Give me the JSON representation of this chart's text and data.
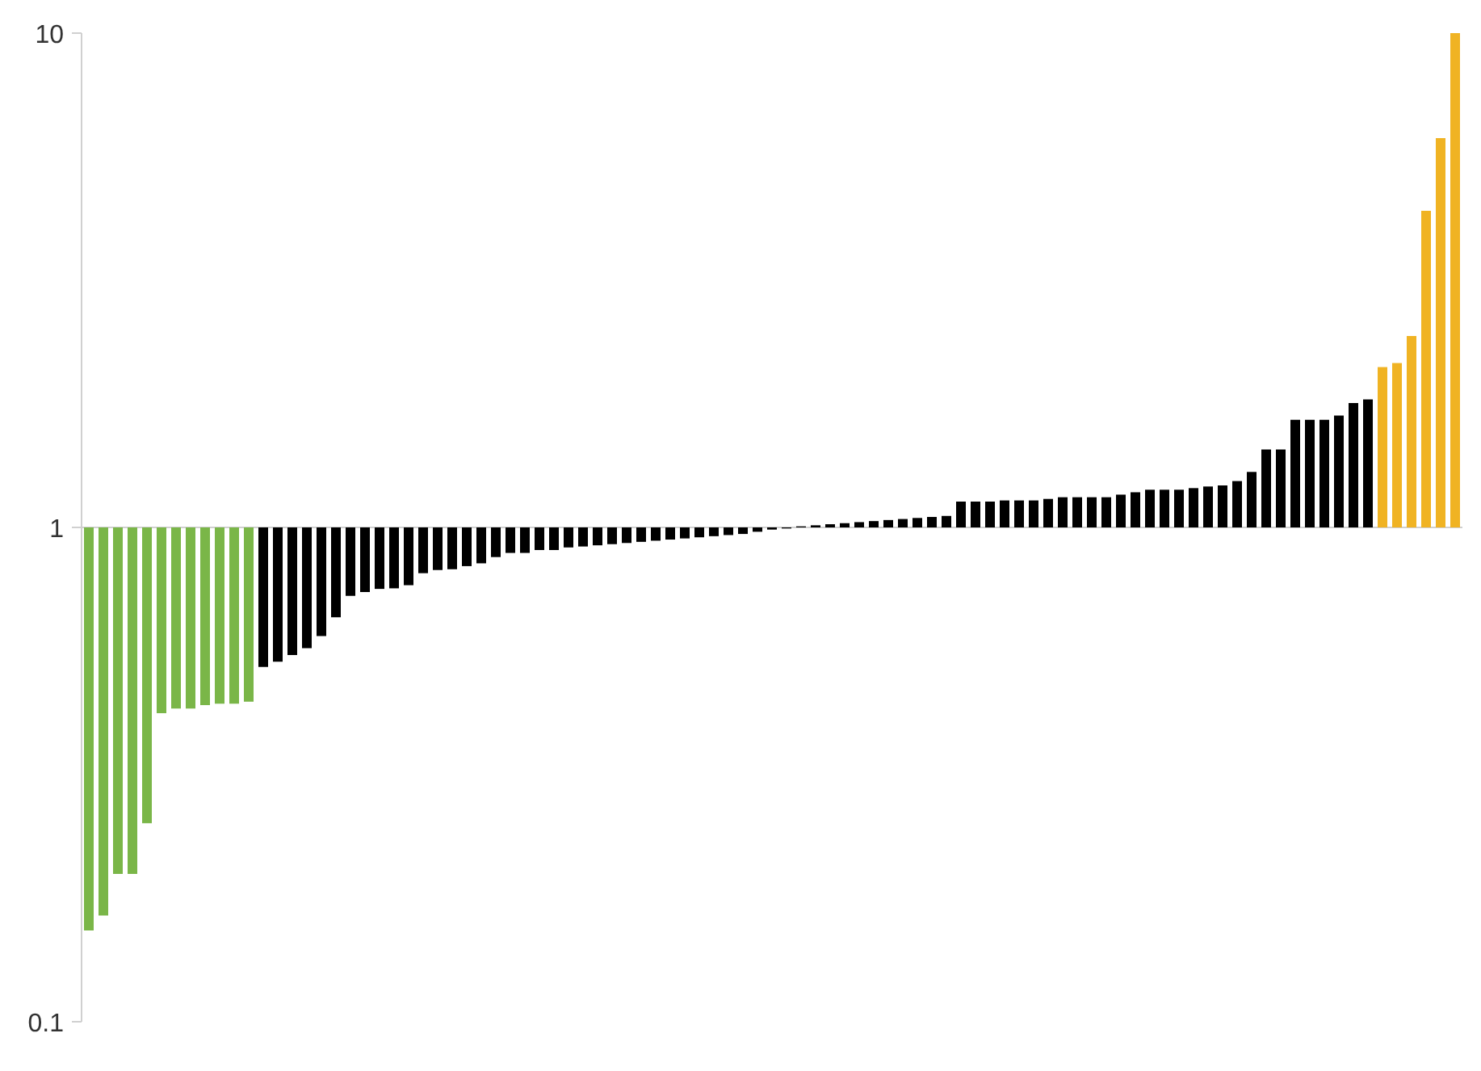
{
  "chart_data": {
    "type": "bar",
    "log": true,
    "ylim": [
      0.1,
      10
    ],
    "yticks": [
      0.1,
      1,
      10
    ],
    "grid": false,
    "ref_lines": [
      {
        "axis": "y",
        "value": 1,
        "color": "#d0d0d0"
      }
    ],
    "categories": [
      null,
      null,
      null,
      null,
      null,
      null,
      null,
      null,
      null,
      null,
      null,
      null,
      null,
      null,
      null,
      null,
      null,
      null,
      null,
      null,
      null,
      null,
      null,
      null,
      null,
      null,
      null,
      null,
      null,
      null,
      null,
      null,
      null,
      null,
      null,
      null,
      null,
      null,
      null,
      null,
      null,
      null,
      null,
      null,
      null,
      null,
      null,
      null,
      null,
      null,
      null,
      null,
      null,
      null,
      null,
      null,
      null,
      null,
      null,
      null,
      null,
      null,
      null,
      null,
      null,
      null,
      null,
      null,
      null,
      null,
      null,
      null,
      null,
      null,
      null,
      null,
      null,
      null,
      null,
      null,
      null,
      null,
      null,
      null,
      null,
      null,
      null,
      null,
      null,
      null,
      null,
      null,
      null,
      null,
      null
    ],
    "base": [
      1,
      1,
      1,
      1,
      1,
      1,
      1,
      1,
      1,
      1,
      1,
      1,
      1,
      1,
      1,
      1,
      1,
      1,
      1,
      1,
      1,
      1,
      1,
      1,
      1,
      1,
      1,
      1,
      1,
      1,
      1,
      1,
      1,
      1,
      1,
      1,
      1,
      1,
      1,
      1,
      1,
      1,
      1,
      1,
      1,
      1,
      1,
      1,
      1,
      1,
      1,
      1,
      1,
      1,
      1,
      1,
      1,
      1,
      1,
      1,
      1,
      1,
      1,
      1,
      1,
      1,
      1,
      1,
      1,
      1,
      1,
      1,
      1,
      1,
      1,
      1,
      1,
      1,
      1,
      1,
      1,
      1,
      1,
      1,
      1,
      1,
      1,
      1,
      1,
      1,
      1,
      1,
      1,
      1,
      1
    ],
    "values": [
      -0.847,
      -0.836,
      -0.801,
      -0.801,
      -0.748,
      -0.579,
      -0.57,
      -0.57,
      -0.563,
      -0.56,
      -0.56,
      -0.556,
      -0.478,
      -0.465,
      -0.448,
      -0.43,
      -0.397,
      -0.342,
      -0.273,
      -0.26,
      -0.249,
      -0.247,
      -0.236,
      -0.192,
      -0.18,
      -0.177,
      -0.165,
      -0.154,
      -0.129,
      -0.112,
      -0.112,
      -0.1,
      -0.1,
      -0.089,
      -0.085,
      -0.08,
      -0.075,
      -0.07,
      -0.065,
      -0.06,
      -0.055,
      -0.05,
      -0.045,
      -0.04,
      -0.035,
      -0.03,
      -0.02,
      -0.01,
      -0.005,
      0.005,
      0.01,
      0.015,
      0.02,
      0.025,
      0.03,
      0.035,
      0.04,
      0.045,
      0.05,
      0.055,
      0.128,
      0.128,
      0.128,
      0.134,
      0.134,
      0.134,
      0.142,
      0.151,
      0.151,
      0.151,
      0.151,
      0.165,
      0.178,
      0.192,
      0.192,
      0.192,
      0.201,
      0.21,
      0.216,
      0.241,
      0.295,
      0.438,
      0.438,
      0.651,
      0.651,
      0.651,
      0.684,
      0.785,
      0.816,
      1.11,
      1.15,
      1.44,
      3.37,
      5.13,
      9
    ],
    "colors": [
      "#7ab648",
      "#7ab648",
      "#7ab648",
      "#7ab648",
      "#7ab648",
      "#7ab648",
      "#7ab648",
      "#7ab648",
      "#7ab648",
      "#7ab648",
      "#7ab648",
      "#7ab648",
      "#000000",
      "#000000",
      "#000000",
      "#000000",
      "#000000",
      "#000000",
      "#000000",
      "#000000",
      "#000000",
      "#000000",
      "#000000",
      "#000000",
      "#000000",
      "#000000",
      "#000000",
      "#000000",
      "#000000",
      "#000000",
      "#000000",
      "#000000",
      "#000000",
      "#000000",
      "#000000",
      "#000000",
      "#000000",
      "#000000",
      "#000000",
      "#000000",
      "#000000",
      "#000000",
      "#000000",
      "#000000",
      "#000000",
      "#000000",
      "#000000",
      "#000000",
      "#000000",
      "#000000",
      "#000000",
      "#000000",
      "#000000",
      "#000000",
      "#000000",
      "#000000",
      "#000000",
      "#000000",
      "#000000",
      "#000000",
      "#000000",
      "#000000",
      "#000000",
      "#000000",
      "#000000",
      "#000000",
      "#000000",
      "#000000",
      "#000000",
      "#000000",
      "#000000",
      "#000000",
      "#000000",
      "#000000",
      "#000000",
      "#000000",
      "#000000",
      "#000000",
      "#000000",
      "#000000",
      "#000000",
      "#000000",
      "#000000",
      "#000000",
      "#000000",
      "#000000",
      "#000000",
      "#000000",
      "#000000",
      "#f0b323",
      "#f0b323",
      "#f0b323",
      "#f0b323",
      "#f0b323",
      "#f0b323"
    ]
  }
}
